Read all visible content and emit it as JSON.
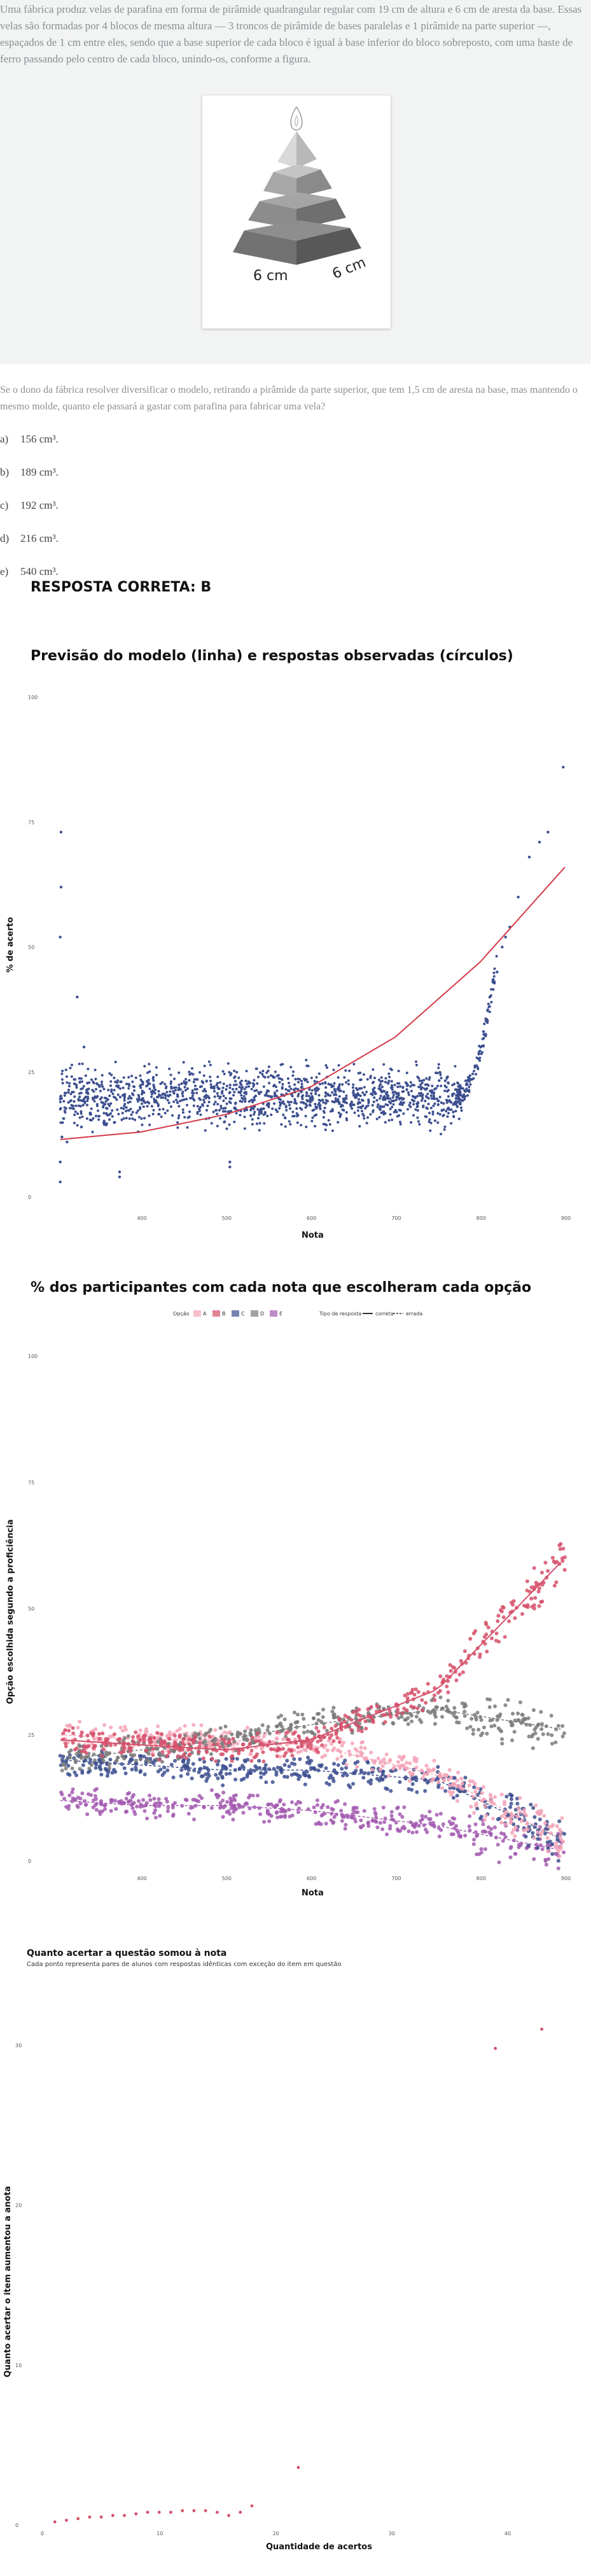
{
  "question": {
    "text": "Uma fábrica produz velas de parafina em forma de pirâmide quadrangular regular com 19 cm de altura e 6 cm de aresta da base. Essas velas são formadas por 4 blocos de mesma altura — 3 troncos de pirâmide de bases paralelas e 1 pirâmide na parte superior —, espaçados de 1 cm entre eles, sendo que a base superior de cada bloco é igual à base inferior do bloco sobreposto, com uma haste de ferro passando pelo centro de cada bloco, unindo-os, conforme a figura.",
    "figure_label_front": "6 cm",
    "figure_label_side": "6 cm",
    "prompt": "Se o dono da fábrica resolver diversificar o modelo, retirando a pirâmide da parte superior, que tem 1,5 cm de aresta na base, mas mantendo o mesmo molde, quanto ele passará a gastar com parafina para fabricar uma vela?",
    "options": [
      {
        "letter": "a)",
        "text": "156 cm³."
      },
      {
        "letter": "b)",
        "text": "189 cm³."
      },
      {
        "letter": "c)",
        "text": "192 cm³."
      },
      {
        "letter": "d)",
        "text": "216 cm³."
      },
      {
        "letter": "e)",
        "text": "540 cm³."
      }
    ]
  },
  "answer_label": "RESPOSTA CORRETA: B",
  "colors": {
    "A": "#f5a3b6",
    "B": "#d6506b",
    "C": "#3d4f8f",
    "D": "#7a7a7a",
    "E": "#a35bb0",
    "model_line": "#d33a4a",
    "points": "#3d4f8f"
  },
  "chart_data": [
    {
      "type": "scatter",
      "title": "Previsão do modelo (linha) e respostas observadas (círculos)",
      "xlabel": "Nota",
      "ylabel": "% de acerto",
      "xlim": [
        300,
        900
      ],
      "ylim": [
        0,
        100
      ],
      "xticks": [
        "400",
        "500",
        "600",
        "700",
        "800",
        "900"
      ],
      "yticks": [
        "0",
        "25",
        "50",
        "75",
        "100"
      ],
      "series": [
        {
          "kind": "points",
          "x": [
            305,
            305,
            305,
            306,
            306,
            307,
            313,
            325,
            330,
            333,
            375,
            375,
            505,
            505,
            820,
            826,
            830,
            835,
            845,
            858,
            870,
            880,
            898
          ],
          "y": [
            3,
            7,
            52,
            62,
            73,
            12,
            11,
            40,
            14,
            30,
            4,
            5,
            6,
            7,
            45,
            50,
            52,
            54,
            60,
            68,
            71,
            73,
            86
          ]
        },
        {
          "kind": "model_line",
          "x": [
            305,
            400,
            500,
            600,
            700,
            800,
            900
          ],
          "y": [
            11.5,
            13,
            16.5,
            22,
            32,
            47,
            66
          ]
        }
      ],
      "band": {
        "x_range": [
          305,
          780
        ],
        "y_center": 20,
        "y_spread": 6
      }
    },
    {
      "type": "scatter",
      "title": "% dos participantes com cada nota que escolheram cada opção",
      "xlabel": "Nota",
      "ylabel": "Opção escolhida segundo a proficiência",
      "legend_title_options": "Opção",
      "legend_items": [
        "A",
        "B",
        "C",
        "D",
        "E"
      ],
      "legend_title_type": "Tipo de resposta",
      "legend_types": [
        "correta",
        "errada"
      ],
      "xlim": [
        300,
        900
      ],
      "ylim": [
        0,
        100
      ],
      "xticks": [
        "400",
        "500",
        "600",
        "700",
        "800",
        "900"
      ],
      "yticks": [
        "0",
        "25",
        "50",
        "75",
        "100"
      ],
      "series": [
        {
          "name": "A",
          "center": [
            25,
            24,
            24,
            23,
            17,
            4
          ]
        },
        {
          "name": "B",
          "center": [
            24,
            23,
            22,
            24,
            34,
            60
          ]
        },
        {
          "name": "C",
          "center": [
            20,
            19,
            18,
            18,
            16,
            4
          ]
        },
        {
          "name": "D",
          "center": [
            20,
            22,
            24,
            27,
            30,
            26
          ]
        },
        {
          "name": "E",
          "center": [
            12,
            11,
            11,
            10,
            7,
            2
          ]
        }
      ],
      "series_x": [
        305,
        400,
        500,
        600,
        750,
        900
      ]
    },
    {
      "type": "scatter",
      "title": "Quanto acertar a questão somou à nota",
      "subtitle": "Cada ponto representa pares de alunos com respostas idênticas com exceção do item em questão",
      "xlabel": "Quantidade de acertos",
      "ylabel": "Quanto acertar o item aumentou a anota",
      "xticks": [
        "0",
        "10",
        "20",
        "30",
        "40"
      ],
      "yticks": [
        "0",
        "10",
        "20",
        "30"
      ],
      "xlim": [
        0,
        45
      ],
      "ylim": [
        0,
        32
      ],
      "x": [
        1,
        2,
        3,
        4,
        5,
        6,
        7,
        8,
        9,
        10,
        11,
        12,
        13,
        14,
        15,
        16,
        17,
        18,
        22,
        39,
        43
      ],
      "y": [
        0.2,
        0.3,
        0.4,
        0.5,
        0.5,
        0.6,
        0.6,
        0.7,
        0.8,
        0.8,
        0.8,
        0.9,
        0.9,
        0.9,
        0.8,
        0.6,
        0.8,
        1.2,
        3.6,
        29.8,
        31
      ]
    }
  ]
}
